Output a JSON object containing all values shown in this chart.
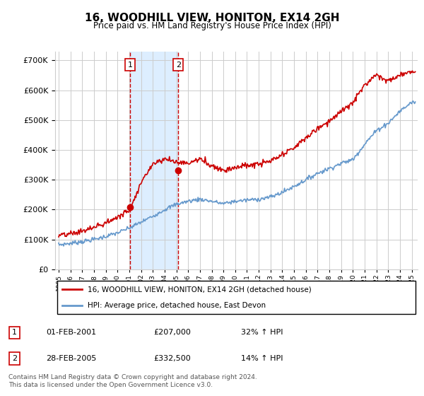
{
  "title": "16, WOODHILL VIEW, HONITON, EX14 2GH",
  "subtitle": "Price paid vs. HM Land Registry's House Price Index (HPI)",
  "ytick_vals": [
    0,
    100000,
    200000,
    300000,
    400000,
    500000,
    600000,
    700000
  ],
  "ylim": [
    0,
    730000
  ],
  "xlim_start": 1994.7,
  "xlim_end": 2025.5,
  "purchase1_date": 2001.083,
  "purchase1_price": 207000,
  "purchase1_label": "1",
  "purchase2_date": 2005.167,
  "purchase2_price": 332500,
  "purchase2_label": "2",
  "legend_line1": "16, WOODHILL VIEW, HONITON, EX14 2GH (detached house)",
  "legend_line2": "HPI: Average price, detached house, East Devon",
  "table_row1": [
    "1",
    "01-FEB-2001",
    "£207,000",
    "32% ↑ HPI"
  ],
  "table_row2": [
    "2",
    "28-FEB-2005",
    "£332,500",
    "14% ↑ HPI"
  ],
  "footnote": "Contains HM Land Registry data © Crown copyright and database right 2024.\nThis data is licensed under the Open Government Licence v3.0.",
  "red_color": "#cc0000",
  "blue_color": "#6699cc",
  "shaded_color": "#ddeeff",
  "grid_color": "#cccccc",
  "bg_color": "#ffffff",
  "hpi_knots_x": [
    1995,
    1996,
    1997,
    1998,
    1999,
    2000,
    2001,
    2002,
    2003,
    2004,
    2005,
    2006,
    2007,
    2008,
    2009,
    2010,
    2011,
    2012,
    2013,
    2014,
    2015,
    2016,
    2017,
    2018,
    2019,
    2020,
    2021,
    2022,
    2023,
    2024,
    2025
  ],
  "hpi_knots_y": [
    82000,
    87000,
    93000,
    100000,
    110000,
    122000,
    138000,
    158000,
    178000,
    200000,
    218000,
    228000,
    235000,
    228000,
    220000,
    228000,
    232000,
    235000,
    242000,
    258000,
    278000,
    300000,
    322000,
    338000,
    355000,
    368000,
    420000,
    465000,
    490000,
    530000,
    560000
  ],
  "price_knots_x": [
    1995,
    1996,
    1997,
    1998,
    1999,
    2000,
    2001,
    2002,
    2003,
    2004,
    2005,
    2006,
    2007,
    2008,
    2009,
    2010,
    2011,
    2012,
    2013,
    2014,
    2015,
    2016,
    2017,
    2018,
    2019,
    2020,
    2021,
    2022,
    2023,
    2024,
    2025
  ],
  "price_knots_y": [
    112000,
    118000,
    128000,
    140000,
    155000,
    175000,
    198000,
    290000,
    355000,
    370000,
    360000,
    355000,
    370000,
    348000,
    332000,
    342000,
    348000,
    352000,
    362000,
    382000,
    408000,
    440000,
    472000,
    498000,
    528000,
    558000,
    618000,
    655000,
    630000,
    650000,
    665000
  ]
}
